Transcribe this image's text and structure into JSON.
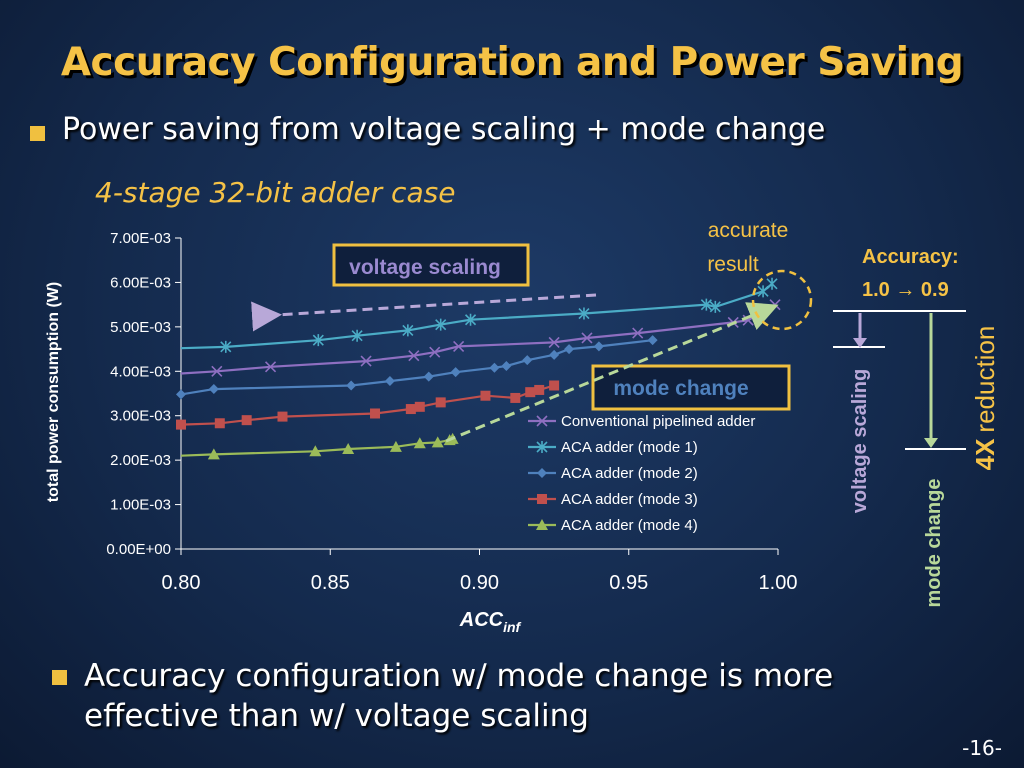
{
  "slide": {
    "title": "Accuracy Configuration and Power Saving",
    "bullet1": "Power saving from voltage scaling + mode change",
    "subtitle": "4-stage 32-bit adder case",
    "bullet2_line1": "Accuracy configuration w/ mode change is more",
    "bullet2_line2": "effective than w/ voltage scaling",
    "page_number": "-16-"
  },
  "annotations": {
    "voltage_scaling_box": "voltage scaling",
    "mode_change_box": "mode change",
    "accurate_line1": "accurate",
    "accurate_line2": "result",
    "accuracy_label": "Accuracy:",
    "accuracy_range": "1.0 → 0.9",
    "vs_vertical": "voltage scaling",
    "mc_vertical": "mode change",
    "reduction_bold": "4X",
    "reduction_text": "reduction"
  },
  "colors": {
    "accent": "#f5c246",
    "box_border": "#f0c040",
    "vs_arrow": "#b8a8d8",
    "mc_arrow": "#b8d89a"
  },
  "chart_data": {
    "type": "line",
    "ylabel": "total power consumption (W)",
    "xlabel_main": "ACC",
    "xlabel_sub": "inf",
    "xlim": [
      0.8,
      1.0
    ],
    "ylim": [
      0,
      0.007
    ],
    "xticks": [
      0.8,
      0.85,
      0.9,
      0.95,
      1.0
    ],
    "xtick_labels": [
      "0.80",
      "0.85",
      "0.90",
      "0.95",
      "1.00"
    ],
    "yticks": [
      0,
      0.001,
      0.002,
      0.003,
      0.004,
      0.005,
      0.006,
      0.007
    ],
    "ytick_labels": [
      "0.00E+00",
      "1.00E-03",
      "2.00E-03",
      "3.00E-03",
      "4.00E-03",
      "5.00E-03",
      "6.00E-03",
      "7.00E-03"
    ],
    "legend_position": "bottom-right",
    "series": [
      {
        "name": "Conventional pipelined adder",
        "color": "#8e6fc1",
        "marker": "x",
        "x": [
          0.8,
          0.812,
          0.83,
          0.862,
          0.878,
          0.885,
          0.893,
          0.925,
          0.936,
          0.953,
          0.985,
          0.99,
          0.999
        ],
        "y": [
          0.00395,
          0.004,
          0.0041,
          0.00423,
          0.00435,
          0.00443,
          0.00456,
          0.00465,
          0.00475,
          0.00486,
          0.0051,
          0.00515,
          0.0055
        ]
      },
      {
        "name": "ACA adder (mode 1)",
        "color": "#4bacc6",
        "marker": "asterisk",
        "x": [
          0.8,
          0.815,
          0.846,
          0.859,
          0.876,
          0.887,
          0.897,
          0.935,
          0.976,
          0.979,
          0.995,
          0.998
        ],
        "y": [
          0.00452,
          0.00455,
          0.0047,
          0.0048,
          0.00492,
          0.00505,
          0.00516,
          0.0053,
          0.0055,
          0.00545,
          0.0058,
          0.00597
        ]
      },
      {
        "name": "ACA adder (mode 2)",
        "color": "#4f81bd",
        "marker": "diamond",
        "x": [
          0.8,
          0.811,
          0.857,
          0.87,
          0.883,
          0.892,
          0.905,
          0.909,
          0.916,
          0.925,
          0.93,
          0.94,
          0.958
        ],
        "y": [
          0.00348,
          0.0036,
          0.00368,
          0.00378,
          0.00388,
          0.00398,
          0.00408,
          0.00412,
          0.00425,
          0.00437,
          0.0045,
          0.00456,
          0.0047
        ]
      },
      {
        "name": "ACA adder (mode 3)",
        "color": "#c0504d",
        "marker": "square",
        "x": [
          0.8,
          0.813,
          0.822,
          0.834,
          0.865,
          0.877,
          0.88,
          0.887,
          0.902,
          0.912,
          0.917,
          0.92,
          0.925
        ],
        "y": [
          0.0028,
          0.00283,
          0.0029,
          0.00298,
          0.00305,
          0.00315,
          0.0032,
          0.0033,
          0.00345,
          0.0034,
          0.00353,
          0.00358,
          0.00368
        ]
      },
      {
        "name": "ACA adder (mode 4)",
        "color": "#9bbb59",
        "marker": "triangle",
        "x": [
          0.8,
          0.811,
          0.845,
          0.856,
          0.872,
          0.88,
          0.886,
          0.89,
          0.891
        ],
        "y": [
          0.0021,
          0.00213,
          0.0022,
          0.00225,
          0.0023,
          0.00238,
          0.0024,
          0.00245,
          0.00248
        ]
      }
    ]
  }
}
